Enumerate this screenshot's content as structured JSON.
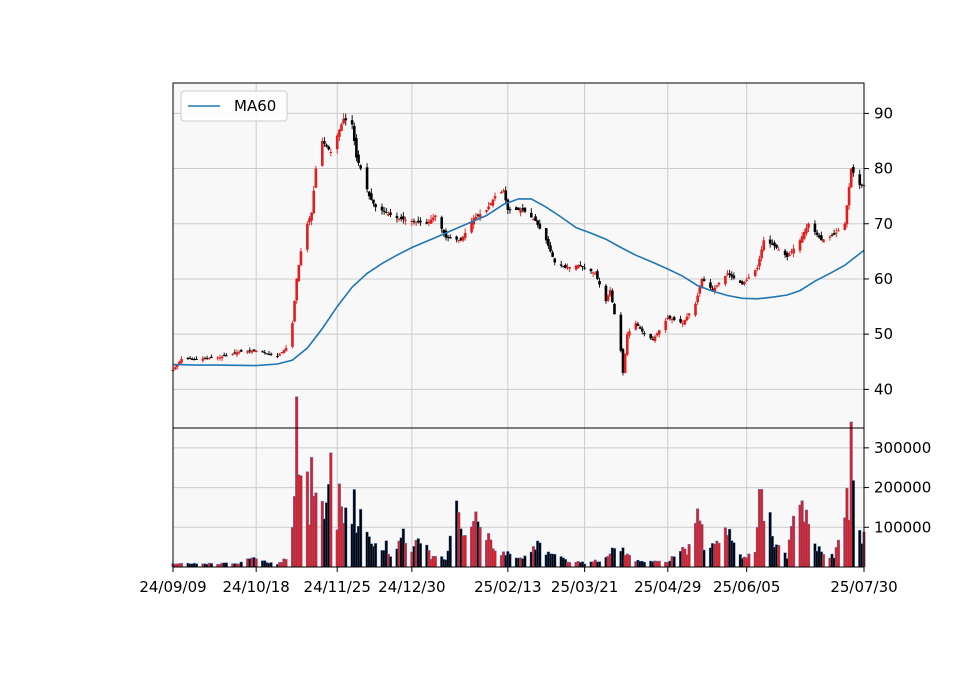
{
  "chart_data": {
    "type": "candlestick",
    "colors": {
      "up": "#e11d1d",
      "down": "#000000",
      "ma_line": "#1f77b4",
      "grid": "#cccccc",
      "plot_bg": "#f8f8f8",
      "volume_edge": "#3a7bd5"
    },
    "legend": {
      "position": "top-left",
      "entries": [
        "MA60"
      ]
    },
    "x_range": [
      "2024-09-09",
      "2025-07-30"
    ],
    "x_ticks": [
      {
        "date": "2024-09-09",
        "label": "24/09/09"
      },
      {
        "date": "2024-10-18",
        "label": "24/10/18"
      },
      {
        "date": "2024-11-25",
        "label": "24/11/25"
      },
      {
        "date": "2024-12-30",
        "label": "24/12/30"
      },
      {
        "date": "2025-02-13",
        "label": "25/02/13"
      },
      {
        "date": "2025-03-21",
        "label": "25/03/21"
      },
      {
        "date": "2025-04-29",
        "label": "25/04/29"
      },
      {
        "date": "2025-06-05",
        "label": "25/06/05"
      },
      {
        "date": "2025-07-30",
        "label": "25/07/30"
      }
    ],
    "price_panel": {
      "ylim": [
        33,
        95.5
      ],
      "y_ticks": [
        40,
        50,
        60,
        70,
        80,
        90
      ],
      "grid": true,
      "close_anchors": [
        [
          "2024-09-09",
          43.5
        ],
        [
          "2024-09-13",
          45.5
        ],
        [
          "2024-09-20",
          45.5
        ],
        [
          "2024-10-01",
          45.8
        ],
        [
          "2024-10-10",
          46.8
        ],
        [
          "2024-10-18",
          47.0
        ],
        [
          "2024-10-28",
          46.0
        ],
        [
          "2024-11-01",
          47.5
        ],
        [
          "2024-11-04",
          52.0
        ],
        [
          "2024-11-06",
          60.0
        ],
        [
          "2024-11-08",
          65.0
        ],
        [
          "2024-11-11",
          70.0
        ],
        [
          "2024-11-13",
          72.0
        ],
        [
          "2024-11-15",
          80.0
        ],
        [
          "2024-11-18",
          85.0
        ],
        [
          "2024-11-20",
          84.0
        ],
        [
          "2024-11-22",
          83.0
        ],
        [
          "2024-11-26",
          87.0
        ],
        [
          "2024-11-28",
          89.0
        ],
        [
          "2024-12-02",
          88.0
        ],
        [
          "2024-12-04",
          82.0
        ],
        [
          "2024-12-06",
          80.0
        ],
        [
          "2024-12-10",
          75.0
        ],
        [
          "2024-12-13",
          73.0
        ],
        [
          "2024-12-18",
          72.0
        ],
        [
          "2024-12-23",
          71.0
        ],
        [
          "2024-12-30",
          70.5
        ],
        [
          "2025-01-06",
          70.0
        ],
        [
          "2025-01-10",
          71.5
        ],
        [
          "2025-01-15",
          67.5
        ],
        [
          "2025-01-22",
          67.0
        ],
        [
          "2025-01-28",
          71.0
        ],
        [
          "2025-02-03",
          72.5
        ],
        [
          "2025-02-07",
          75.0
        ],
        [
          "2025-02-11",
          76.0
        ],
        [
          "2025-02-13",
          72.5
        ],
        [
          "2025-02-20",
          72.5
        ],
        [
          "2025-02-26",
          70.5
        ],
        [
          "2025-03-03",
          67.0
        ],
        [
          "2025-03-07",
          63.0
        ],
        [
          "2025-03-12",
          62.0
        ],
        [
          "2025-03-18",
          62.5
        ],
        [
          "2025-03-21",
          62.0
        ],
        [
          "2025-03-26",
          61.0
        ],
        [
          "2025-03-31",
          56.0
        ],
        [
          "2025-04-02",
          58.0
        ],
        [
          "2025-04-07",
          47.0
        ],
        [
          "2025-04-08",
          43.0
        ],
        [
          "2025-04-10",
          50.0
        ],
        [
          "2025-04-14",
          52.0
        ],
        [
          "2025-04-18",
          50.0
        ],
        [
          "2025-04-22",
          49.0
        ],
        [
          "2025-04-29",
          53.0
        ],
        [
          "2025-05-06",
          52.0
        ],
        [
          "2025-05-12",
          55.5
        ],
        [
          "2025-05-15",
          60.0
        ],
        [
          "2025-05-20",
          58.0
        ],
        [
          "2025-05-27",
          61.0
        ],
        [
          "2025-06-03",
          59.0
        ],
        [
          "2025-06-10",
          62.0
        ],
        [
          "2025-06-13",
          67.0
        ],
        [
          "2025-06-18",
          66.0
        ],
        [
          "2025-06-24",
          64.0
        ],
        [
          "2025-06-30",
          67.0
        ],
        [
          "2025-07-04",
          70.0
        ],
        [
          "2025-07-10",
          67.0
        ],
        [
          "2025-07-16",
          68.0
        ],
        [
          "2025-07-21",
          70.0
        ],
        [
          "2025-07-24",
          80.0
        ],
        [
          "2025-07-28",
          77.0
        ],
        [
          "2025-07-30",
          77.0
        ]
      ],
      "ma60": {
        "name": "MA60",
        "points": [
          [
            "2024-09-09",
            44.5
          ],
          [
            "2024-09-20",
            44.4
          ],
          [
            "2024-10-01",
            44.4
          ],
          [
            "2024-10-18",
            44.3
          ],
          [
            "2024-10-28",
            44.6
          ],
          [
            "2024-11-04",
            45.3
          ],
          [
            "2024-11-11",
            47.5
          ],
          [
            "2024-11-18",
            51.0
          ],
          [
            "2024-11-25",
            55.0
          ],
          [
            "2024-12-02",
            58.5
          ],
          [
            "2024-12-09",
            61.0
          ],
          [
            "2024-12-16",
            62.8
          ],
          [
            "2024-12-23",
            64.3
          ],
          [
            "2024-12-30",
            65.7
          ],
          [
            "2025-01-10",
            67.5
          ],
          [
            "2025-01-22",
            69.5
          ],
          [
            "2025-02-03",
            71.5
          ],
          [
            "2025-02-11",
            73.5
          ],
          [
            "2025-02-18",
            74.5
          ],
          [
            "2025-02-24",
            74.5
          ],
          [
            "2025-03-03",
            73.0
          ],
          [
            "2025-03-10",
            71.2
          ],
          [
            "2025-03-17",
            69.3
          ],
          [
            "2025-03-24",
            68.3
          ],
          [
            "2025-03-31",
            67.2
          ],
          [
            "2025-04-07",
            65.7
          ],
          [
            "2025-04-14",
            64.3
          ],
          [
            "2025-04-22",
            63.0
          ],
          [
            "2025-04-29",
            61.8
          ],
          [
            "2025-05-06",
            60.5
          ],
          [
            "2025-05-13",
            58.8
          ],
          [
            "2025-05-20",
            57.8
          ],
          [
            "2025-05-27",
            57.0
          ],
          [
            "2025-06-03",
            56.5
          ],
          [
            "2025-06-10",
            56.4
          ],
          [
            "2025-06-17",
            56.7
          ],
          [
            "2025-06-24",
            57.1
          ],
          [
            "2025-06-30",
            57.9
          ],
          [
            "2025-07-07",
            59.6
          ],
          [
            "2025-07-14",
            61.0
          ],
          [
            "2025-07-21",
            62.5
          ],
          [
            "2025-07-30",
            65.2
          ]
        ]
      }
    },
    "volume_panel": {
      "ylim": [
        0,
        350000
      ],
      "y_ticks": [
        {
          "value": 100000,
          "label": "100000"
        },
        {
          "value": 200000,
          "label": "200000"
        },
        {
          "value": 300000,
          "label": "300000"
        }
      ],
      "grid": true,
      "volume_anchors": [
        [
          "2024-09-09",
          8000
        ],
        [
          "2024-10-10",
          9000
        ],
        [
          "2024-10-15",
          22000
        ],
        [
          "2024-10-28",
          6000
        ],
        [
          "2024-11-01",
          20000
        ],
        [
          "2024-11-04",
          95000
        ],
        [
          "2024-11-06",
          350000
        ],
        [
          "2024-11-07",
          220000
        ],
        [
          "2024-11-08",
          225000
        ],
        [
          "2024-11-11",
          205000
        ],
        [
          "2024-11-12",
          140000
        ],
        [
          "2024-11-13",
          240000
        ],
        [
          "2024-11-14",
          195000
        ],
        [
          "2024-11-15",
          210000
        ],
        [
          "2024-11-18",
          165000
        ],
        [
          "2024-11-19",
          110000
        ],
        [
          "2024-11-20",
          150000
        ],
        [
          "2024-11-21",
          220000
        ],
        [
          "2024-11-22",
          295000
        ],
        [
          "2024-11-25",
          110000
        ],
        [
          "2024-11-26",
          175000
        ],
        [
          "2024-11-27",
          165000
        ],
        [
          "2024-11-28",
          110000
        ],
        [
          "2024-11-29",
          195000
        ],
        [
          "2024-12-02",
          95000
        ],
        [
          "2024-12-03",
          190000
        ],
        [
          "2024-12-04",
          80000
        ],
        [
          "2024-12-05",
          110000
        ],
        [
          "2024-12-06",
          120000
        ],
        [
          "2024-12-09",
          100000
        ],
        [
          "2024-12-10",
          70000
        ],
        [
          "2024-12-12",
          60000
        ],
        [
          "2024-12-16",
          40000
        ],
        [
          "2024-12-18",
          55000
        ],
        [
          "2024-12-20",
          25000
        ],
        [
          "2024-12-26",
          90000
        ],
        [
          "2024-12-30",
          35000
        ],
        [
          "2025-01-03",
          78000
        ],
        [
          "2025-01-08",
          25000
        ],
        [
          "2025-01-15",
          20000
        ],
        [
          "2025-01-20",
          145000
        ],
        [
          "2025-01-23",
          65000
        ],
        [
          "2025-01-27",
          110000
        ],
        [
          "2025-01-29",
          120000
        ],
        [
          "2025-02-03",
          80000
        ],
        [
          "2025-02-07",
          40000
        ],
        [
          "2025-02-13",
          35000
        ],
        [
          "2025-02-20",
          20000
        ],
        [
          "2025-02-27",
          60000
        ],
        [
          "2025-03-05",
          30000
        ],
        [
          "2025-03-14",
          15000
        ],
        [
          "2025-03-21",
          10000
        ],
        [
          "2025-03-31",
          20000
        ],
        [
          "2025-04-04",
          45000
        ],
        [
          "2025-04-08",
          40000
        ],
        [
          "2025-04-14",
          15000
        ],
        [
          "2025-04-22",
          12000
        ],
        [
          "2025-04-29",
          15000
        ],
        [
          "2025-05-06",
          45000
        ],
        [
          "2025-05-08",
          30000
        ],
        [
          "2025-05-12",
          100000
        ],
        [
          "2025-05-14",
          135000
        ],
        [
          "2025-05-16",
          40000
        ],
        [
          "2025-05-26",
          90000
        ],
        [
          "2025-05-28",
          90000
        ],
        [
          "2025-06-03",
          25000
        ],
        [
          "2025-06-09",
          30000
        ],
        [
          "2025-06-11",
          190000
        ],
        [
          "2025-06-13",
          135000
        ],
        [
          "2025-06-16",
          115000
        ],
        [
          "2025-06-18",
          55000
        ],
        [
          "2025-06-24",
          25000
        ],
        [
          "2025-06-26",
          95000
        ],
        [
          "2025-07-01",
          155000
        ],
        [
          "2025-07-02",
          105000
        ],
        [
          "2025-07-03",
          145000
        ],
        [
          "2025-07-07",
          55000
        ],
        [
          "2025-07-10",
          35000
        ],
        [
          "2025-07-16",
          25000
        ],
        [
          "2025-07-21",
          120000
        ],
        [
          "2025-07-22",
          195000
        ],
        [
          "2025-07-23",
          150000
        ],
        [
          "2025-07-24",
          325000
        ],
        [
          "2025-07-25",
          175000
        ],
        [
          "2025-07-28",
          100000
        ],
        [
          "2025-07-29",
          60000
        ],
        [
          "2025-07-30",
          80000
        ]
      ]
    }
  }
}
